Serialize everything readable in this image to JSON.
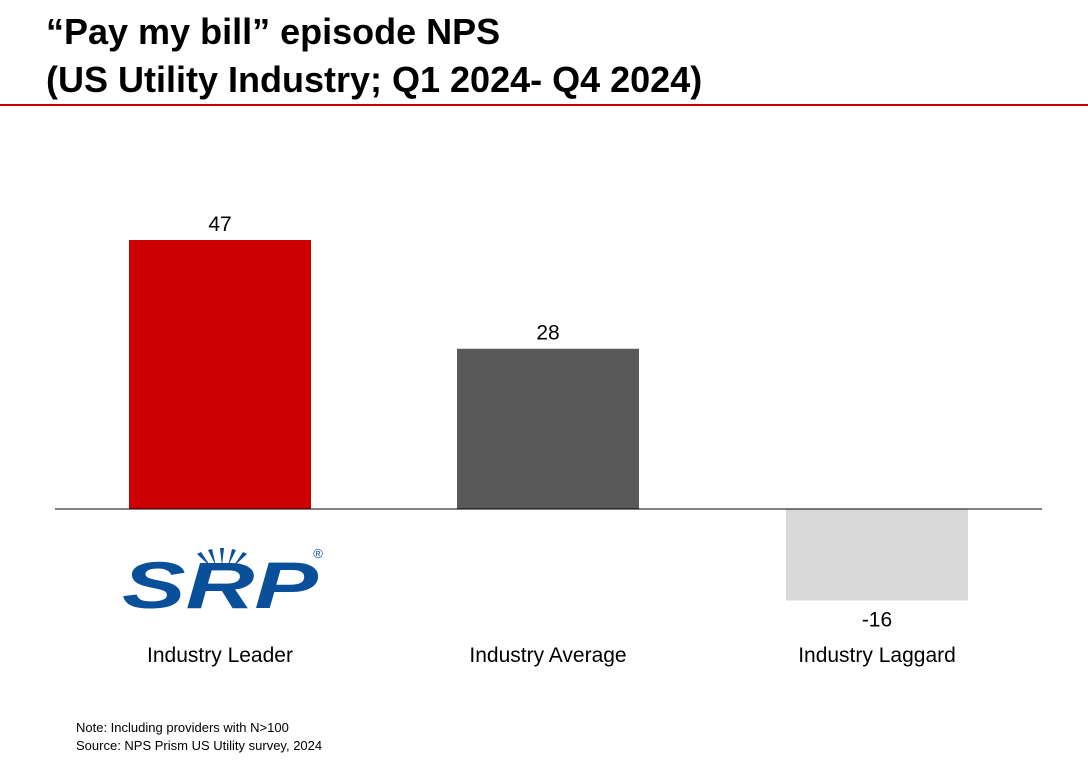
{
  "title": {
    "line1": "“Pay my bill” episode NPS",
    "line2": "(US Utility Industry; Q1 2024- Q4 2024)"
  },
  "colors": {
    "accent": "#c00000",
    "leader": "#cc0000",
    "average": "#595959",
    "laggard": "#d9d9d9",
    "logo_blue": "#0a4f99"
  },
  "chart_data": {
    "type": "bar",
    "categories": [
      "Industry Leader",
      "Industry Average",
      "Industry Laggard"
    ],
    "values": [
      47,
      28,
      -16
    ],
    "data_labels": [
      "47",
      "28",
      "-16"
    ],
    "ylim": [
      -16,
      47
    ],
    "grid": false,
    "legend": "none"
  },
  "logo": {
    "text": "SRP",
    "mark": "®"
  },
  "notes": {
    "note": "Note: Including providers with N>100",
    "source": "Source: NPS Prism US Utility survey, 2024"
  }
}
